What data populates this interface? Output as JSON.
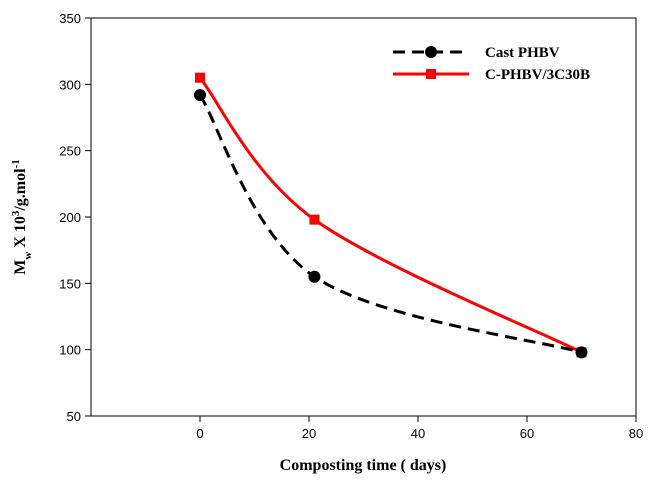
{
  "chart_data": {
    "type": "line",
    "xlabel": "Composting time ( days)",
    "ylabel": {
      "base": "M",
      "sub": "w",
      "mid": " X 10",
      "sup1": "3",
      "tail": "/g.mol",
      "sup2": "-1"
    },
    "xlim": [
      -20,
      80
    ],
    "ylim": [
      50,
      350
    ],
    "xticks": [
      0,
      20,
      40,
      60,
      80
    ],
    "yticks": [
      50,
      100,
      150,
      200,
      250,
      300,
      350
    ],
    "grid": false,
    "legend_position": "top-right",
    "series": [
      {
        "name": "Cast PHBV",
        "x": [
          0,
          21,
          70
        ],
        "y": [
          292,
          155,
          98
        ],
        "color": "#000000",
        "line_style": "dashed",
        "marker": "circle"
      },
      {
        "name": "C-PHBV/3C30B",
        "x": [
          0,
          21,
          70
        ],
        "y": [
          305,
          198,
          98
        ],
        "color": "#ff0000",
        "line_style": "solid",
        "marker": "square"
      }
    ]
  }
}
